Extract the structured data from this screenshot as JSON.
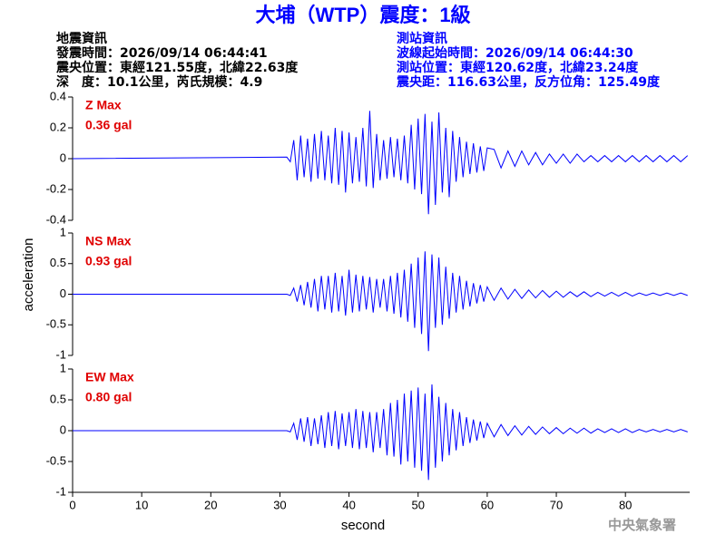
{
  "header": {
    "title": "大埔（WTP）震度：1級",
    "event_info": [
      "地震資訊",
      "發震時間：2026/09/14 06:44:41",
      "震央位置：東經121.55度，北緯22.63度",
      "深　度：10.1公里，芮氏規模：4.9"
    ],
    "station_info": [
      "測站資訊",
      "波線起始時間：2026/09/14 06:44:30",
      "測站位置：東經120.62度，北緯23.24度",
      "震央距：116.63公里，反方位角：125.49度"
    ]
  },
  "y_label": "acceleration",
  "x_label": "second",
  "footer": "中央氣象署",
  "chart_data": [
    {
      "type": "line",
      "annotations": [
        "Z Max",
        "0.36 gal"
      ],
      "color": "#0000ff",
      "xlim": [
        0,
        89.3
      ],
      "ylim": [
        -0.4,
        0.4
      ],
      "yticks": [
        -0.4,
        -0.2,
        0,
        0.2,
        0.4
      ],
      "x": [
        0,
        31,
        31.5,
        32,
        32.5,
        33,
        33.5,
        34,
        34.5,
        35,
        35.5,
        36,
        36.5,
        37,
        37.5,
        38,
        38.5,
        39,
        39.5,
        40,
        40.5,
        41,
        41.5,
        42,
        42.5,
        43,
        43.5,
        44,
        44.5,
        45,
        45.5,
        46,
        46.5,
        47,
        47.5,
        48,
        48.5,
        49,
        49.5,
        50,
        50.5,
        51,
        51.5,
        52,
        52.5,
        53,
        53.5,
        54,
        54.5,
        55,
        55.5,
        56,
        56.5,
        57,
        57.5,
        58,
        58.5,
        59,
        59.5,
        60,
        61,
        62,
        63,
        64,
        65,
        66,
        67,
        68,
        69,
        70,
        71,
        72,
        73,
        74,
        75,
        76,
        77,
        78,
        79,
        80,
        81,
        82,
        83,
        84,
        85,
        86,
        87,
        88,
        89
      ],
      "values": [
        0,
        0.01,
        -0.02,
        0.12,
        -0.14,
        0.15,
        -0.12,
        0.13,
        -0.15,
        0.16,
        -0.13,
        0.18,
        -0.14,
        0.15,
        -0.16,
        0.2,
        -0.17,
        0.18,
        -0.22,
        0.17,
        -0.16,
        0.14,
        -0.15,
        0.2,
        -0.18,
        0.31,
        -0.19,
        0.16,
        -0.14,
        0.12,
        -0.13,
        0.14,
        -0.12,
        0.13,
        -0.14,
        0.15,
        -0.16,
        0.22,
        -0.2,
        0.26,
        -0.23,
        0.29,
        -0.36,
        0.24,
        -0.3,
        0.3,
        -0.22,
        0.2,
        -0.25,
        0.18,
        -0.15,
        0.14,
        -0.12,
        0.11,
        -0.1,
        0.1,
        -0.09,
        0.08,
        -0.08,
        0.07,
        0.06,
        -0.06,
        0.05,
        -0.05,
        0.05,
        -0.04,
        0.04,
        -0.04,
        0.03,
        -0.03,
        0.03,
        -0.03,
        0.03,
        -0.02,
        0.02,
        -0.02,
        0.02,
        -0.02,
        0.02,
        -0.02,
        0.02,
        -0.02,
        0.02,
        -0.02,
        0.02,
        -0.02,
        0.02,
        -0.02,
        0.02
      ]
    },
    {
      "type": "line",
      "annotations": [
        "NS Max",
        "0.93 gal"
      ],
      "color": "#0000ff",
      "xlim": [
        0,
        89.3
      ],
      "ylim": [
        -1,
        1
      ],
      "yticks": [
        -1,
        -0.5,
        0,
        0.5,
        1
      ],
      "x": [
        0,
        31,
        31.5,
        32,
        32.5,
        33,
        33.5,
        34,
        34.5,
        35,
        35.5,
        36,
        36.5,
        37,
        37.5,
        38,
        38.5,
        39,
        39.5,
        40,
        40.5,
        41,
        41.5,
        42,
        42.5,
        43,
        43.5,
        44,
        44.5,
        45,
        45.5,
        46,
        46.5,
        47,
        47.5,
        48,
        48.5,
        49,
        49.5,
        50,
        50.5,
        51,
        51.5,
        52,
        52.5,
        53,
        53.5,
        54,
        54.5,
        55,
        55.5,
        56,
        56.5,
        57,
        57.5,
        58,
        58.5,
        59,
        59.5,
        60,
        61,
        62,
        63,
        64,
        65,
        66,
        67,
        68,
        69,
        70,
        71,
        72,
        73,
        74,
        75,
        76,
        77,
        78,
        79,
        80,
        81,
        82,
        83,
        84,
        85,
        86,
        87,
        88,
        89
      ],
      "values": [
        0,
        0,
        -0.02,
        0.1,
        -0.12,
        0.15,
        -0.18,
        0.2,
        -0.22,
        0.25,
        -0.28,
        0.3,
        -0.25,
        0.3,
        -0.3,
        0.35,
        -0.28,
        0.3,
        -0.35,
        0.4,
        -0.3,
        0.32,
        -0.28,
        0.3,
        -0.25,
        0.28,
        -0.3,
        0.25,
        -0.22,
        0.25,
        -0.28,
        0.3,
        -0.32,
        0.35,
        -0.38,
        0.4,
        -0.45,
        0.5,
        -0.55,
        0.6,
        -0.65,
        0.7,
        -0.93,
        0.65,
        -0.55,
        0.6,
        -0.5,
        0.45,
        -0.4,
        0.35,
        -0.3,
        0.3,
        -0.25,
        0.22,
        -0.2,
        0.18,
        -0.15,
        0.15,
        -0.12,
        0.12,
        -0.1,
        0.1,
        -0.08,
        0.08,
        -0.07,
        0.07,
        -0.06,
        0.06,
        -0.05,
        0.05,
        -0.05,
        0.04,
        -0.04,
        0.04,
        -0.04,
        0.03,
        -0.03,
        0.03,
        -0.03,
        0.03,
        -0.03,
        0.02,
        -0.02,
        0.02,
        -0.02,
        0.02,
        -0.02,
        0.02,
        -0.02
      ]
    },
    {
      "type": "line",
      "annotations": [
        "EW Max",
        "0.80 gal"
      ],
      "color": "#0000ff",
      "xlim": [
        0,
        89.3
      ],
      "ylim": [
        -1,
        1
      ],
      "yticks": [
        -1,
        -0.5,
        0,
        0.5,
        1
      ],
      "xticks": [
        0,
        10,
        20,
        30,
        40,
        50,
        60,
        70,
        80
      ],
      "x": [
        0,
        31,
        31.5,
        32,
        32.5,
        33,
        33.5,
        34,
        34.5,
        35,
        35.5,
        36,
        36.5,
        37,
        37.5,
        38,
        38.5,
        39,
        39.5,
        40,
        40.5,
        41,
        41.5,
        42,
        42.5,
        43,
        43.5,
        44,
        44.5,
        45,
        45.5,
        46,
        46.5,
        47,
        47.5,
        48,
        48.5,
        49,
        49.5,
        50,
        50.5,
        51,
        51.5,
        52,
        52.5,
        53,
        53.5,
        54,
        54.5,
        55,
        55.5,
        56,
        56.5,
        57,
        57.5,
        58,
        58.5,
        59,
        59.5,
        60,
        61,
        62,
        63,
        64,
        65,
        66,
        67,
        68,
        69,
        70,
        71,
        72,
        73,
        74,
        75,
        76,
        77,
        78,
        79,
        80,
        81,
        82,
        83,
        84,
        85,
        86,
        87,
        88,
        89
      ],
      "values": [
        0,
        0,
        -0.02,
        0.12,
        -0.15,
        0.2,
        -0.18,
        0.22,
        -0.25,
        0.2,
        -0.22,
        0.25,
        -0.28,
        0.3,
        -0.25,
        0.32,
        -0.3,
        0.28,
        -0.25,
        0.3,
        -0.28,
        0.35,
        -0.3,
        0.32,
        -0.28,
        0.3,
        -0.35,
        0.3,
        -0.28,
        0.35,
        -0.4,
        0.45,
        -0.42,
        0.5,
        -0.55,
        0.6,
        -0.5,
        0.65,
        -0.6,
        0.7,
        -0.65,
        0.6,
        -0.8,
        0.75,
        -0.6,
        0.55,
        -0.5,
        0.45,
        -0.4,
        0.35,
        -0.32,
        0.3,
        -0.25,
        0.22,
        -0.2,
        0.18,
        -0.16,
        0.15,
        -0.12,
        0.12,
        -0.1,
        0.1,
        -0.08,
        0.08,
        -0.07,
        0.07,
        -0.06,
        0.06,
        -0.05,
        0.05,
        -0.05,
        0.04,
        -0.04,
        0.04,
        -0.04,
        0.03,
        -0.03,
        0.03,
        -0.03,
        0.03,
        -0.03,
        0.02,
        -0.02,
        0.02,
        -0.02,
        0.02,
        -0.02,
        0.02,
        -0.02
      ]
    }
  ]
}
